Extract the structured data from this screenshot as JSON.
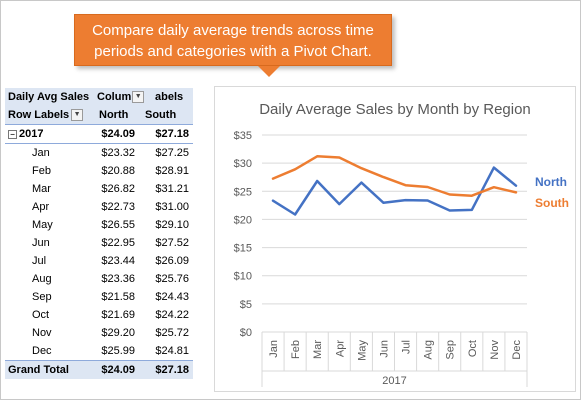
{
  "callout": {
    "text": "Compare daily average trends across time periods and categories with a Pivot Chart."
  },
  "pivot": {
    "corner_label": "Daily Avg Sales",
    "column_labels_partial": "Colum",
    "column_labels_tail": "abels",
    "row_labels": "Row Labels",
    "col_north": "North",
    "col_south": "South",
    "year_label": "2017",
    "year_north": "$24.09",
    "year_south": "$27.18",
    "rows": [
      {
        "month": "Jan",
        "north": "$23.32",
        "south": "$27.25"
      },
      {
        "month": "Feb",
        "north": "$20.88",
        "south": "$28.91"
      },
      {
        "month": "Mar",
        "north": "$26.82",
        "south": "$31.21"
      },
      {
        "month": "Apr",
        "north": "$22.73",
        "south": "$31.00"
      },
      {
        "month": "May",
        "north": "$26.55",
        "south": "$29.10"
      },
      {
        "month": "Jun",
        "north": "$22.95",
        "south": "$27.52"
      },
      {
        "month": "Jul",
        "north": "$23.44",
        "south": "$26.09"
      },
      {
        "month": "Aug",
        "north": "$23.36",
        "south": "$25.76"
      },
      {
        "month": "Sep",
        "north": "$21.58",
        "south": "$24.43"
      },
      {
        "month": "Oct",
        "north": "$21.69",
        "south": "$24.22"
      },
      {
        "month": "Nov",
        "north": "$29.20",
        "south": "$25.72"
      },
      {
        "month": "Dec",
        "north": "$25.99",
        "south": "$24.81"
      }
    ],
    "grand_label": "Grand Total",
    "grand_north": "$24.09",
    "grand_south": "$27.18"
  },
  "chart_data": {
    "type": "line",
    "title": "Daily Average Sales by Month by Region",
    "categories": [
      "Jan",
      "Feb",
      "Mar",
      "Apr",
      "May",
      "Jun",
      "Jul",
      "Aug",
      "Sep",
      "Oct",
      "Nov",
      "Dec"
    ],
    "group_label": "2017",
    "series": [
      {
        "name": "North",
        "color": "#4472c4",
        "values": [
          23.32,
          20.88,
          26.82,
          22.73,
          26.55,
          22.95,
          23.44,
          23.36,
          21.58,
          21.69,
          29.2,
          25.99
        ]
      },
      {
        "name": "South",
        "color": "#ed7d31",
        "values": [
          27.25,
          28.91,
          31.21,
          31.0,
          29.1,
          27.52,
          26.09,
          25.76,
          24.43,
          24.22,
          25.72,
          24.81
        ]
      }
    ],
    "y_ticks": [
      "$0",
      "$5",
      "$10",
      "$15",
      "$20",
      "$25",
      "$30",
      "$35"
    ],
    "ylim": [
      0,
      35
    ],
    "grid": true,
    "legend": "right, at line ends"
  }
}
